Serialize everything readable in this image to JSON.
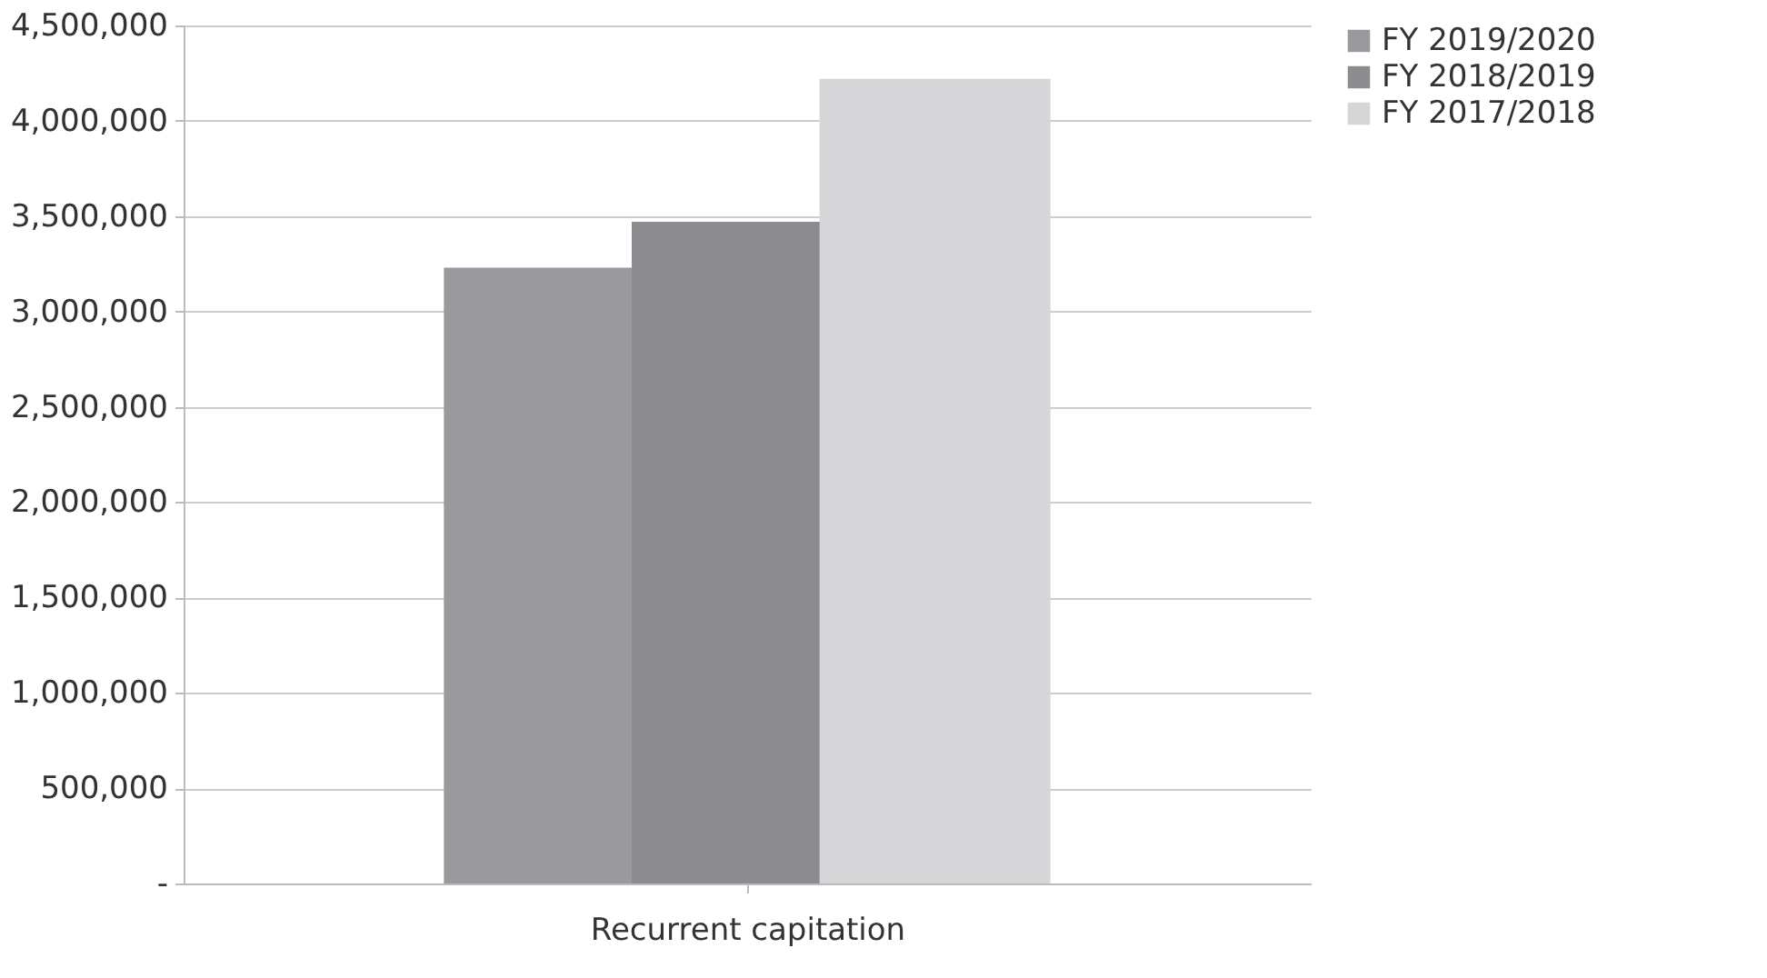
{
  "chart_data": {
    "type": "bar",
    "categories": [
      "Recurrent capitation"
    ],
    "series": [
      {
        "name": "FY 2019/2020",
        "color": "#9a9a9e",
        "values": [
          3230000
        ]
      },
      {
        "name": "FY 2018/2019",
        "color": "#8c8c90",
        "values": [
          3470000
        ]
      },
      {
        "name": "FY 2017/2018",
        "color": "#d6d6d9",
        "values": [
          4220000
        ]
      }
    ],
    "ylim": [
      0,
      4500000
    ],
    "yticks": [
      {
        "value": 0,
        "label": "-"
      },
      {
        "value": 500000,
        "label": "500,000"
      },
      {
        "value": 1000000,
        "label": "1,000,000"
      },
      {
        "value": 1500000,
        "label": "1,500,000"
      },
      {
        "value": 2000000,
        "label": "2,000,000"
      },
      {
        "value": 2500000,
        "label": "2,500,000"
      },
      {
        "value": 3000000,
        "label": "3,000,000"
      },
      {
        "value": 3500000,
        "label": "3,500,000"
      },
      {
        "value": 4000000,
        "label": "4,000,000"
      },
      {
        "value": 4500000,
        "label": "4,500,000"
      }
    ],
    "grid": "y",
    "legend": "right"
  }
}
